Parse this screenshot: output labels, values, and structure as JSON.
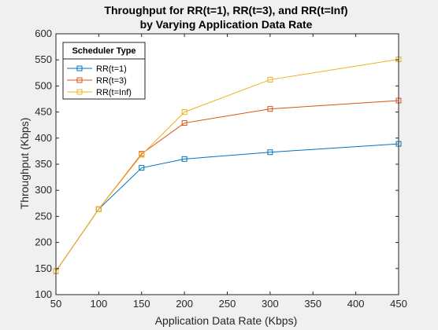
{
  "chart_data": {
    "type": "line",
    "title": "Throughput for RR(t=1), RR(t=3), and RR(t=Inf)",
    "subtitle": "by Varying Application Data Rate",
    "xlabel": "Application Data Rate (Kbps)",
    "ylabel": "Throughput (Kbps)",
    "xlim": [
      50,
      450
    ],
    "ylim": [
      100,
      600
    ],
    "xticks": [
      50,
      100,
      150,
      200,
      250,
      300,
      350,
      400,
      450
    ],
    "yticks": [
      100,
      150,
      200,
      250,
      300,
      350,
      400,
      450,
      500,
      550,
      600
    ],
    "grid": false,
    "legend": {
      "title": "Scheduler Type",
      "placement": "top-left"
    },
    "x": [
      50,
      100,
      150,
      200,
      300,
      450
    ],
    "series": [
      {
        "name": "RR(t=1)",
        "color": "#0072BD",
        "marker": "square",
        "values": [
          145,
          264,
          343,
          360,
          373,
          389
        ]
      },
      {
        "name": "RR(t=3)",
        "color": "#D95319",
        "marker": "square",
        "values": [
          145,
          264,
          370,
          429,
          456,
          472
        ]
      },
      {
        "name": "RR(t=Inf)",
        "color": "#EDB120",
        "marker": "square",
        "values": [
          145,
          264,
          368,
          450,
          512,
          551
        ]
      }
    ]
  }
}
